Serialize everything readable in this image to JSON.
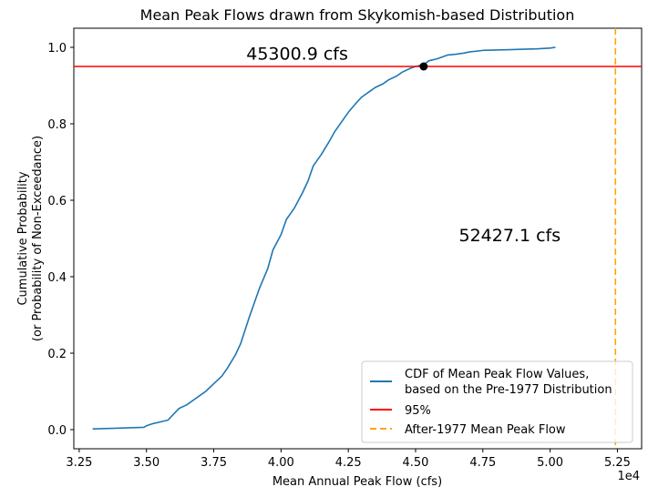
{
  "chart_data": {
    "type": "line",
    "title": "Mean Peak Flows drawn from Skykomish-based Distribution",
    "xlabel": "Mean Annual Peak Flow (cfs)",
    "ylabel_line1": "Cumulative Probability",
    "ylabel_line2": "(or Probability of Non-Exceedance)",
    "x_offset_label": "1e4",
    "xlim": [
      3.23,
      5.34
    ],
    "ylim": [
      -0.05,
      1.05
    ],
    "x_ticks": [
      3.25,
      3.5,
      3.75,
      4.0,
      4.25,
      4.5,
      4.75,
      5.0,
      5.25
    ],
    "x_tick_labels": [
      "3.25",
      "3.50",
      "3.75",
      "4.00",
      "4.25",
      "4.50",
      "4.75",
      "5.00",
      "5.25"
    ],
    "y_ticks": [
      0.0,
      0.2,
      0.4,
      0.6,
      0.8,
      1.0
    ],
    "y_tick_labels": [
      "0.0",
      "0.2",
      "0.4",
      "0.6",
      "0.8",
      "1.0"
    ],
    "series": [
      {
        "name": "CDF of Mean Peak Flow Values,\nbased on the Pre-1977 Distribution",
        "legend_line1": "CDF of Mean Peak Flow Values,",
        "legend_line2": "based on the Pre-1977 Distribution",
        "color": "#1f77b4",
        "x": [
          3.3,
          3.4,
          3.49,
          3.5,
          3.52,
          3.55,
          3.58,
          3.6,
          3.62,
          3.65,
          3.68,
          3.7,
          3.72,
          3.75,
          3.78,
          3.8,
          3.83,
          3.85,
          3.88,
          3.9,
          3.92,
          3.95,
          3.97,
          4.0,
          4.02,
          4.05,
          4.08,
          4.1,
          4.12,
          4.15,
          4.18,
          4.2,
          4.23,
          4.25,
          4.28,
          4.3,
          4.33,
          4.35,
          4.38,
          4.4,
          4.43,
          4.45,
          4.48,
          4.5,
          4.53,
          4.55,
          4.58,
          4.6,
          4.62,
          4.65,
          4.68,
          4.7,
          4.75,
          4.8,
          4.85,
          4.9,
          4.95,
          5.0,
          5.02
        ],
        "y": [
          0.002,
          0.004,
          0.006,
          0.01,
          0.015,
          0.02,
          0.025,
          0.04,
          0.055,
          0.065,
          0.08,
          0.09,
          0.1,
          0.12,
          0.14,
          0.16,
          0.195,
          0.225,
          0.29,
          0.33,
          0.37,
          0.42,
          0.47,
          0.51,
          0.55,
          0.58,
          0.62,
          0.65,
          0.69,
          0.72,
          0.755,
          0.78,
          0.81,
          0.83,
          0.855,
          0.87,
          0.885,
          0.895,
          0.905,
          0.915,
          0.925,
          0.935,
          0.945,
          0.95,
          0.955,
          0.965,
          0.97,
          0.975,
          0.98,
          0.982,
          0.985,
          0.988,
          0.992,
          0.993,
          0.994,
          0.995,
          0.996,
          0.998,
          1.0
        ]
      }
    ],
    "threshold": {
      "name": "95%",
      "y": 0.95,
      "color": "#ff0000"
    },
    "after_mean": {
      "name": "After-1977 Mean Peak Flow",
      "x": 5.24271,
      "color": "#ffa500"
    },
    "marker_point": {
      "x": 4.53009,
      "y": 0.95
    },
    "annotations": [
      {
        "text": "45300.9 cfs",
        "x": 4.06,
        "y": 0.985
      },
      {
        "text": "52427.1 cfs",
        "x": 4.85,
        "y": 0.51
      }
    ],
    "legend_position": "lower right",
    "grid": false
  }
}
